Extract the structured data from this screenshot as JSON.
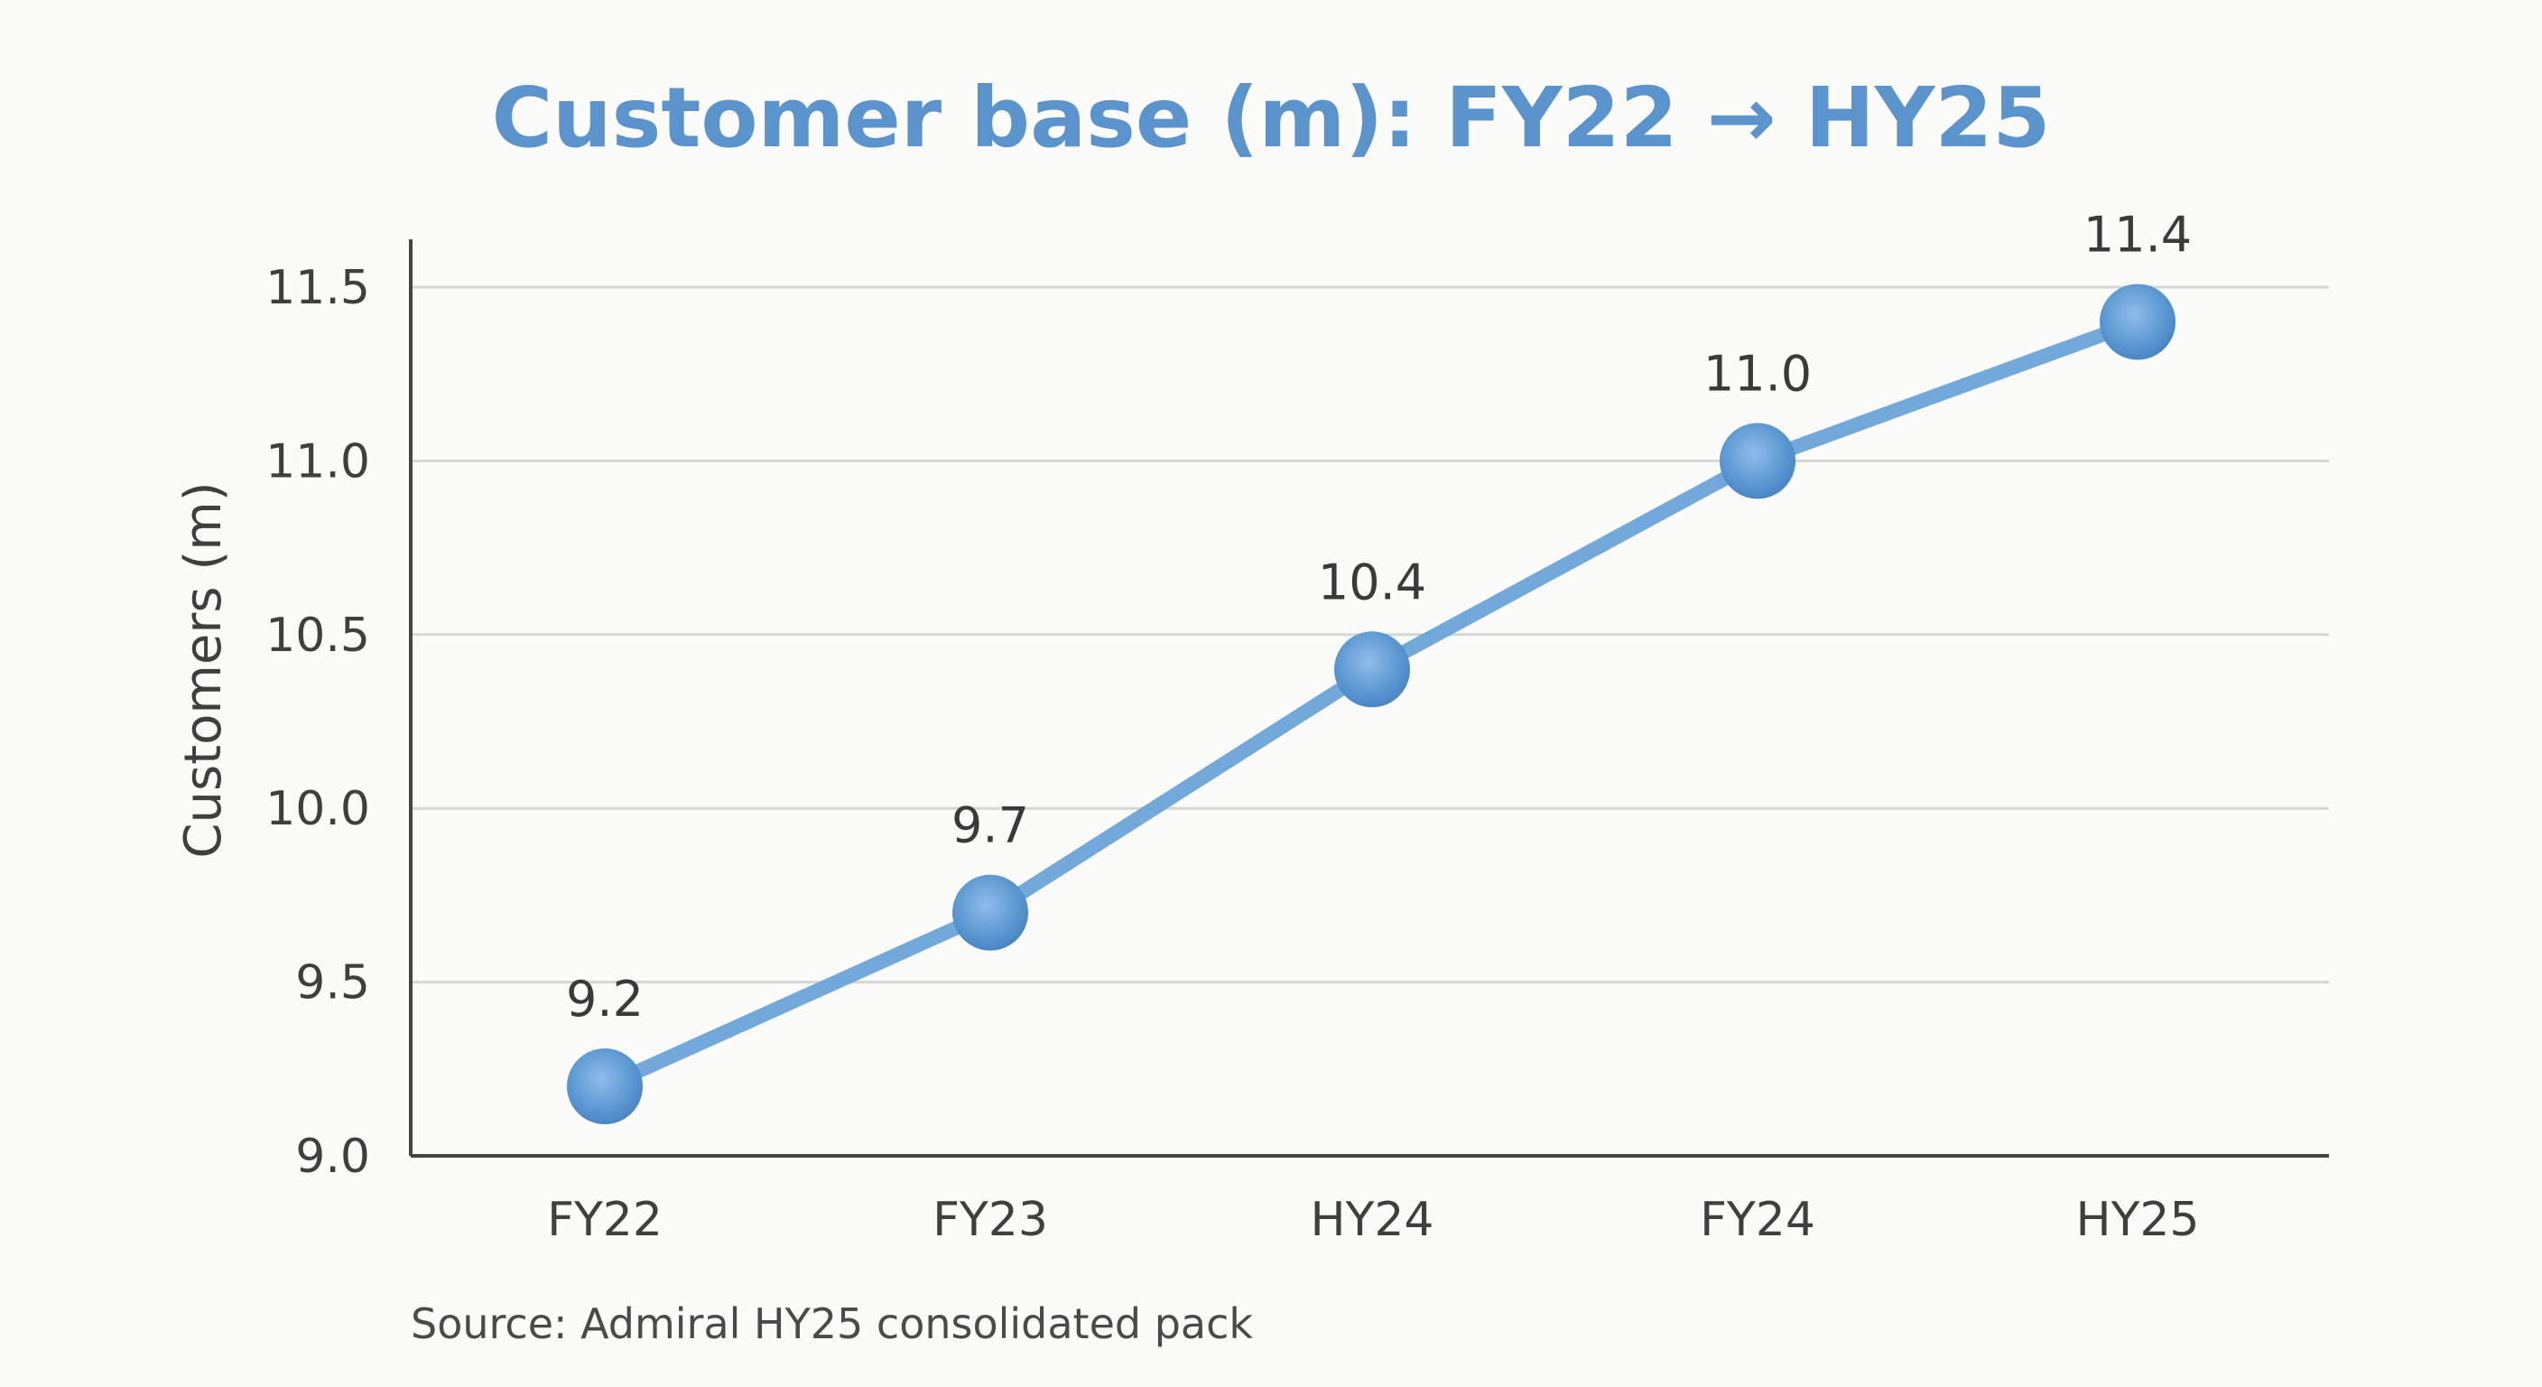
{
  "chart_data": {
    "type": "line",
    "title": "Customer base (m): FY22 → HY25",
    "xlabel": "",
    "ylabel": "Customers (m)",
    "categories": [
      "FY22",
      "FY23",
      "HY24",
      "FY24",
      "HY25"
    ],
    "series": [
      {
        "values": [
          9.2,
          9.7,
          10.4,
          11.0,
          11.4
        ],
        "data_labels": [
          "9.2",
          "9.7",
          "10.4",
          "11.0",
          "11.4"
        ]
      }
    ],
    "ylim": [
      9.0,
      11.5
    ],
    "yticks": [
      9.0,
      9.5,
      10.0,
      10.5,
      11.0,
      11.5
    ],
    "ytick_labels": [
      "9.0",
      "9.5",
      "10.0",
      "10.5",
      "11.0",
      "11.5"
    ],
    "grid": true,
    "legend": "none",
    "line_color": "#6aa3d8",
    "marker_color": "#5a97d2",
    "title_color": "#5b93cc",
    "source": "Source: Admiral HY25 consolidated pack"
  }
}
